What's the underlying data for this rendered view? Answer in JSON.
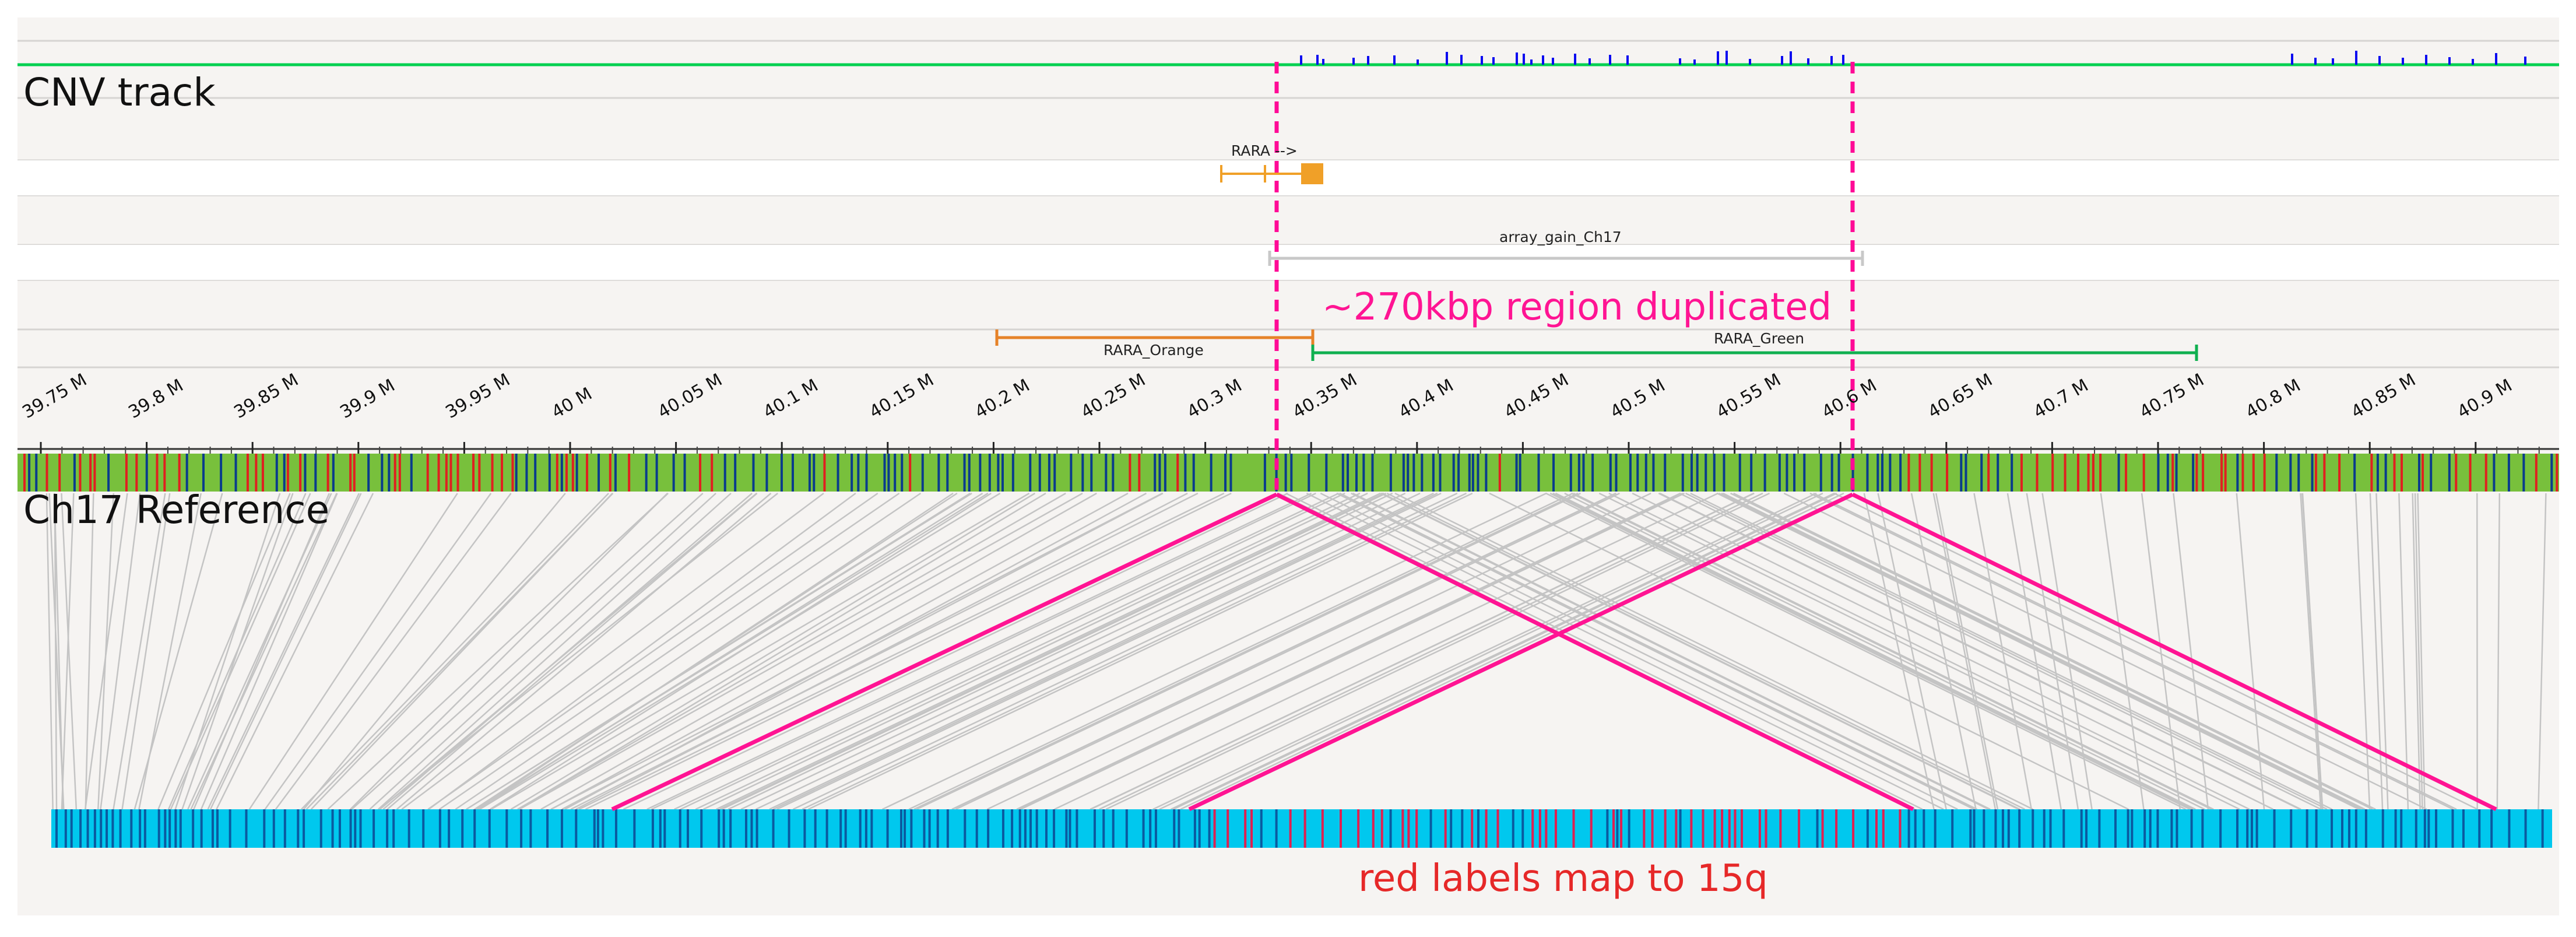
{
  "labels": {
    "cnv_track": "CNV track",
    "reference": "Ch17 Reference",
    "gene": "RARA -->",
    "array_gain": "array_gain_Ch17",
    "probe_orange": "RARA_Orange",
    "probe_green": "RARA_Green",
    "duplication_note": "~270kbp region duplicated",
    "map_note": "red labels map to 15q"
  },
  "ticks": [
    "39.75 M",
    "39.8 M",
    "39.85 M",
    "39.9 M",
    "39.95 M",
    "40 M",
    "40.05 M",
    "40.1 M",
    "40.15 M",
    "40.2 M",
    "40.25 M",
    "40.3 M",
    "40.35 M",
    "40.4 M",
    "40.45 M",
    "40.5 M",
    "40.55 M",
    "40.6 M",
    "40.65 M",
    "40.7 M",
    "40.75 M",
    "40.8 M",
    "40.85 M",
    "40.9 M"
  ],
  "regions": {
    "duplication_start": "40.33 M",
    "duplication_end": "40.60 M"
  },
  "colors": {
    "reference_bar": "#78c03c",
    "query_bar": "#00c8ee",
    "label_red": "#e02020",
    "label_blue": "#0a3c8c",
    "query_label_blue": "#0a5aa0",
    "query_label_red": "#e02050",
    "dashed_line": "#ff0a96",
    "cnv_baseline": "#00d050",
    "cnv_gain": "#0a0af0",
    "gene": "#f0a028",
    "probe_orange": "#e68228",
    "probe_green": "#10b050",
    "array_gain_bar": "#c8c8c8",
    "alignment": "#c4c4c4",
    "pink_alignment": "#ff1493",
    "duplication_note": "#ff1493",
    "map_note": "#e62828"
  }
}
